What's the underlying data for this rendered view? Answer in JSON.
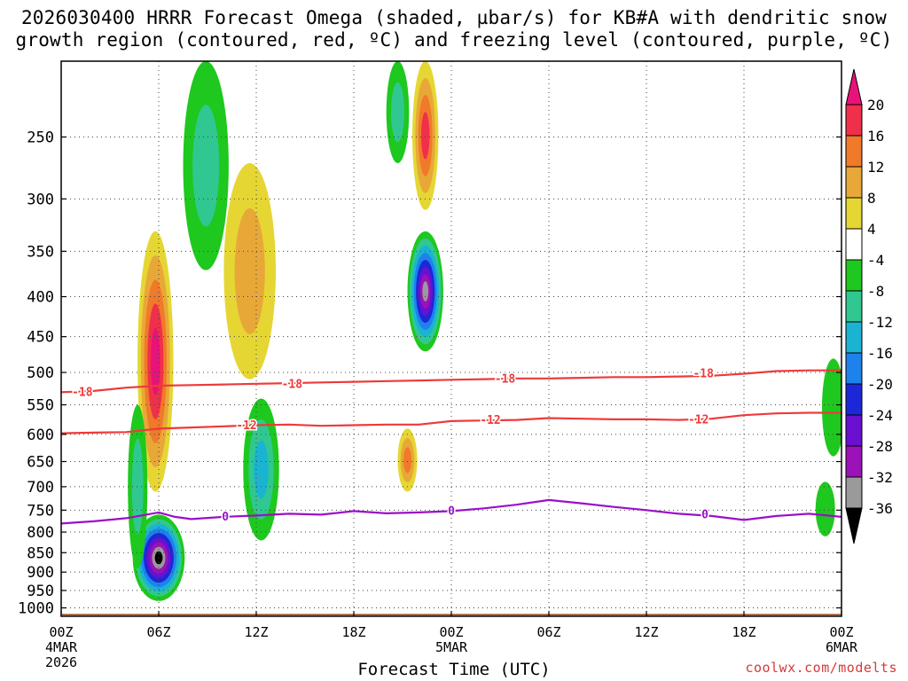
{
  "title": {
    "line1": "2026030400 HRRR Forecast Omega (shaded, µbar/s) for KB#A with dendritic snow",
    "line2": "growth region (contoured, red, ºC) and freezing level (contoured, purple, ºC)"
  },
  "credit": "coolwx.com/modelts",
  "chart_data": {
    "type": "heatmap",
    "title": "2026030400 HRRR Forecast Omega (shaded, µbar/s) for KB#A with dendritic snow growth region (contoured, red, ºC) and freezing level (contoured, purple, ºC)",
    "xlabel": "Forecast Time (UTC)",
    "ylabel": "",
    "x_range_hours": [
      0,
      48
    ],
    "y_range_hpa": [
      1025,
      200
    ],
    "y_scale": "log-pressure",
    "grid": true,
    "y_ticks": [
      250,
      300,
      350,
      400,
      450,
      500,
      550,
      600,
      650,
      700,
      750,
      800,
      850,
      900,
      950,
      1000
    ],
    "x_ticks": [
      {
        "hour": 0,
        "lines": [
          "00Z",
          "4MAR",
          "2026"
        ]
      },
      {
        "hour": 6,
        "lines": [
          "06Z"
        ]
      },
      {
        "hour": 12,
        "lines": [
          "12Z"
        ]
      },
      {
        "hour": 18,
        "lines": [
          "18Z"
        ]
      },
      {
        "hour": 24,
        "lines": [
          "00Z",
          "5MAR"
        ]
      },
      {
        "hour": 30,
        "lines": [
          "06Z"
        ]
      },
      {
        "hour": 36,
        "lines": [
          "12Z"
        ]
      },
      {
        "hour": 42,
        "lines": [
          "18Z"
        ]
      },
      {
        "hour": 48,
        "lines": [
          "00Z",
          "6MAR"
        ]
      }
    ],
    "colorbar": {
      "ticks": [
        20,
        16,
        12,
        8,
        4,
        -4,
        -8,
        -12,
        -16,
        -20,
        -24,
        -28,
        -32,
        -36
      ],
      "bins": [
        {
          "range": [
            16,
            20
          ],
          "color": "#f0304a"
        },
        {
          "range": [
            12,
            16
          ],
          "color": "#f07a2a"
        },
        {
          "range": [
            8,
            12
          ],
          "color": "#e8a838"
        },
        {
          "range": [
            4,
            8
          ],
          "color": "#e6d634"
        },
        {
          "range": [
            -4,
            4
          ],
          "color": "#ffffff"
        },
        {
          "range": [
            -8,
            -4
          ],
          "color": "#1ec81e"
        },
        {
          "range": [
            -12,
            -8
          ],
          "color": "#30c890"
        },
        {
          "range": [
            -16,
            -12
          ],
          "color": "#1ab4d2"
        },
        {
          "range": [
            -20,
            -16
          ],
          "color": "#1e82ec"
        },
        {
          "range": [
            -24,
            -20
          ],
          "color": "#1c28d8"
        },
        {
          "range": [
            -28,
            -24
          ],
          "color": "#6a10d0"
        },
        {
          "range": [
            -32,
            -28
          ],
          "color": "#9a12b8"
        },
        {
          "range": [
            -36,
            -32
          ],
          "color": "#9a9a9a"
        }
      ],
      "max_triangle_color": "#e8127a",
      "min_triangle_color": "#000000"
    },
    "contours": [
      {
        "label": "-18",
        "color": "#ee3a3a",
        "points": [
          [
            0,
            530
          ],
          [
            2,
            528
          ],
          [
            4,
            523
          ],
          [
            6,
            520
          ],
          [
            8,
            519
          ],
          [
            10,
            518
          ],
          [
            12,
            517
          ],
          [
            14,
            516
          ],
          [
            16,
            515
          ],
          [
            18,
            514
          ],
          [
            20,
            513
          ],
          [
            22,
            512
          ],
          [
            24,
            511
          ],
          [
            26,
            510
          ],
          [
            28,
            509
          ],
          [
            30,
            509
          ],
          [
            32,
            508
          ],
          [
            34,
            507
          ],
          [
            36,
            507
          ],
          [
            38,
            506
          ],
          [
            40,
            505
          ],
          [
            42,
            502
          ],
          [
            44,
            498
          ],
          [
            46,
            497
          ],
          [
            48,
            497
          ]
        ]
      },
      {
        "label": "-12",
        "color": "#ee3a3a",
        "points": [
          [
            0,
            598
          ],
          [
            2,
            597
          ],
          [
            4,
            596
          ],
          [
            6,
            590
          ],
          [
            8,
            588
          ],
          [
            10,
            586
          ],
          [
            12,
            584
          ],
          [
            14,
            583
          ],
          [
            16,
            585
          ],
          [
            18,
            584
          ],
          [
            20,
            583
          ],
          [
            22,
            583
          ],
          [
            24,
            577
          ],
          [
            26,
            576
          ],
          [
            28,
            575
          ],
          [
            30,
            572
          ],
          [
            32,
            573
          ],
          [
            34,
            574
          ],
          [
            36,
            574
          ],
          [
            38,
            575
          ],
          [
            40,
            573
          ],
          [
            42,
            567
          ],
          [
            44,
            564
          ],
          [
            46,
            563
          ],
          [
            48,
            563
          ]
        ]
      },
      {
        "label": "0",
        "color": "#9a10c8",
        "points": [
          [
            0,
            780
          ],
          [
            2,
            775
          ],
          [
            4,
            768
          ],
          [
            6,
            755
          ],
          [
            7,
            765
          ],
          [
            8,
            770
          ],
          [
            10,
            765
          ],
          [
            12,
            762
          ],
          [
            14,
            758
          ],
          [
            16,
            760
          ],
          [
            18,
            752
          ],
          [
            20,
            757
          ],
          [
            22,
            755
          ],
          [
            24,
            752
          ],
          [
            26,
            746
          ],
          [
            28,
            738
          ],
          [
            30,
            728
          ],
          [
            32,
            735
          ],
          [
            34,
            743
          ],
          [
            36,
            750
          ],
          [
            38,
            758
          ],
          [
            40,
            763
          ],
          [
            42,
            772
          ],
          [
            44,
            763
          ],
          [
            46,
            758
          ],
          [
            48,
            765
          ]
        ]
      }
    ],
    "contour_labels": [
      {
        "text": "-18",
        "hour": 1.3,
        "hpa": 530
      },
      {
        "text": "-18",
        "hour": 14.2,
        "hpa": 518
      },
      {
        "text": "-18",
        "hour": 27.3,
        "hpa": 510
      },
      {
        "text": "-18",
        "hour": 39.5,
        "hpa": 502
      },
      {
        "text": "-12",
        "hour": 11.4,
        "hpa": 585
      },
      {
        "text": "-12",
        "hour": 26.4,
        "hpa": 576
      },
      {
        "text": "-12",
        "hour": 39.2,
        "hpa": 575
      },
      {
        "text": "0",
        "hour": 10.1,
        "hpa": 765
      },
      {
        "text": "0",
        "hour": 24.0,
        "hpa": 752
      },
      {
        "text": "0",
        "hour": 39.6,
        "hpa": 760
      }
    ],
    "omega_features": [
      {
        "hour": 6,
        "hpa": 870,
        "rh": 1.6,
        "rp": 110,
        "values": [
          -6,
          -10,
          -14,
          -18,
          -22,
          -26,
          -30,
          -34,
          -40
        ]
      },
      {
        "hour": 5.8,
        "hpa": 520,
        "rh": 1.1,
        "rp": 190,
        "values": [
          6,
          10,
          14,
          18,
          22
        ]
      },
      {
        "hour": 4.7,
        "hpa": 720,
        "rh": 0.6,
        "rp": 170,
        "values": [
          -6,
          -10
        ]
      },
      {
        "hour": 22.4,
        "hpa": 400,
        "rh": 1.1,
        "rp": 70,
        "values": [
          -6,
          -10,
          -14,
          -18,
          -22,
          -26,
          -30,
          -36
        ]
      },
      {
        "hour": 22.4,
        "hpa": 240,
        "rh": 0.8,
        "rp": 70,
        "values": [
          6,
          10,
          14,
          18
        ]
      },
      {
        "hour": 8.9,
        "hpa": 230,
        "rh": 1.4,
        "rp": 140,
        "values": [
          -6,
          -10
        ]
      },
      {
        "hour": 11.6,
        "hpa": 390,
        "rh": 1.6,
        "rp": 120,
        "values": [
          6,
          10
        ]
      },
      {
        "hour": 12.3,
        "hpa": 680,
        "rh": 1.1,
        "rp": 140,
        "values": [
          -6,
          -10,
          -14
        ]
      },
      {
        "hour": 20.7,
        "hpa": 220,
        "rh": 0.7,
        "rp": 50,
        "values": [
          -6,
          -10
        ]
      },
      {
        "hour": 21.3,
        "hpa": 650,
        "rh": 0.6,
        "rp": 60,
        "values": [
          6,
          10,
          14
        ]
      },
      {
        "hour": 47.5,
        "hpa": 560,
        "rh": 0.7,
        "rp": 80,
        "values": [
          -6
        ]
      },
      {
        "hour": 47,
        "hpa": 750,
        "rh": 0.6,
        "rp": 60,
        "values": [
          -6
        ]
      }
    ]
  }
}
